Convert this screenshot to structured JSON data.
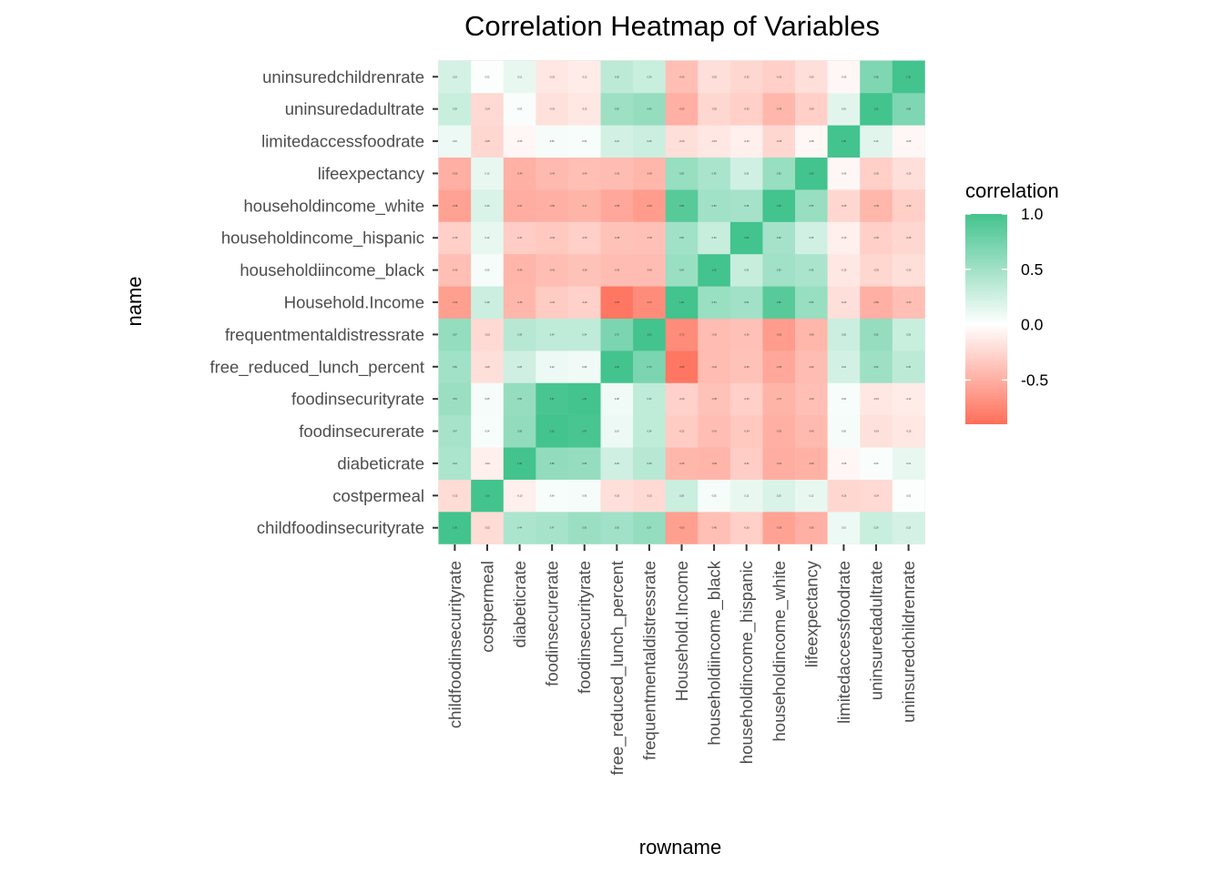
{
  "chart_data": {
    "type": "heatmap",
    "title": "Correlation Heatmap of Variables",
    "xlabel": "rowname",
    "ylabel": "name",
    "x_categories": [
      "childfoodinsecurityrate",
      "costpermeal",
      "diabeticrate",
      "foodinsecurerate",
      "foodinsecurityrate",
      "free_reduced_lunch_percent",
      "frequentmentaldistressrate",
      "Household.Income",
      "householdiincome_black",
      "householdincome_hispanic",
      "householdincome_white",
      "lifeexpectancy",
      "limitedaccessfoodrate",
      "uninsuredadultrate",
      "uninsuredchildrenrate"
    ],
    "y_categories": [
      "childfoodinsecurityrate",
      "costpermeal",
      "diabeticrate",
      "foodinsecurerate",
      "foodinsecurityrate",
      "free_reduced_lunch_percent",
      "frequentmentaldistressrate",
      "Household.Income",
      "householdiincome_black",
      "householdincome_hispanic",
      "householdincome_white",
      "lifeexpectancy",
      "limitedaccessfoodrate",
      "uninsuredadultrate",
      "uninsuredchildrenrate"
    ],
    "values": [
      [
        1.0,
        -0.22,
        0.44,
        0.47,
        0.53,
        0.5,
        0.57,
        -0.6,
        -0.4,
        -0.3,
        -0.58,
        -0.5,
        0.1,
        0.29,
        0.23
      ],
      [
        -0.22,
        1.0,
        -0.1,
        0.04,
        0.05,
        -0.2,
        -0.23,
        0.28,
        0.05,
        0.12,
        0.2,
        0.12,
        -0.25,
        -0.24,
        0.02
      ],
      [
        0.44,
        -0.1,
        1.0,
        0.58,
        0.56,
        0.26,
        0.39,
        -0.45,
        -0.46,
        -0.31,
        -0.51,
        -0.49,
        -0.05,
        0.03,
        0.12
      ],
      [
        0.47,
        0.04,
        0.58,
        1.0,
        0.97,
        0.1,
        0.34,
        -0.32,
        -0.41,
        -0.34,
        -0.5,
        -0.43,
        0.05,
        -0.19,
        -0.15
      ],
      [
        0.53,
        0.05,
        0.56,
        0.97,
        1.0,
        0.08,
        0.34,
        -0.29,
        -0.38,
        -0.3,
        -0.47,
        -0.4,
        0.04,
        -0.15,
        -0.12
      ],
      [
        0.5,
        -0.2,
        0.26,
        0.1,
        0.08,
        1.0,
        0.7,
        -0.85,
        -0.42,
        -0.38,
        -0.55,
        -0.42,
        0.24,
        0.52,
        0.35
      ],
      [
        0.57,
        -0.23,
        0.39,
        0.34,
        0.34,
        0.7,
        1.0,
        -0.72,
        -0.42,
        -0.39,
        -0.62,
        -0.45,
        0.28,
        0.56,
        0.29
      ],
      [
        -0.6,
        0.28,
        -0.45,
        -0.32,
        -0.29,
        -0.85,
        -0.72,
        1.0,
        0.54,
        0.5,
        0.89,
        0.55,
        -0.2,
        -0.5,
        -0.4
      ],
      [
        -0.4,
        0.05,
        -0.46,
        -0.41,
        -0.38,
        -0.42,
        -0.42,
        0.54,
        1.0,
        0.3,
        0.5,
        0.45,
        -0.15,
        -0.25,
        -0.2
      ],
      [
        -0.3,
        0.12,
        -0.31,
        -0.34,
        -0.3,
        -0.38,
        -0.39,
        0.5,
        0.3,
        1.0,
        0.48,
        0.25,
        -0.1,
        -0.3,
        -0.25
      ],
      [
        -0.58,
        0.2,
        -0.51,
        -0.5,
        -0.47,
        -0.55,
        -0.62,
        0.89,
        0.5,
        0.48,
        1.0,
        0.55,
        -0.25,
        -0.45,
        -0.3
      ],
      [
        -0.5,
        0.12,
        -0.49,
        -0.43,
        -0.4,
        -0.42,
        -0.45,
        0.55,
        0.45,
        0.25,
        0.55,
        1.0,
        -0.05,
        -0.3,
        -0.2
      ],
      [
        0.1,
        -0.25,
        -0.05,
        0.05,
        0.04,
        0.24,
        0.28,
        -0.2,
        -0.15,
        -0.1,
        -0.25,
        -0.05,
        1.0,
        0.16,
        -0.05
      ],
      [
        0.29,
        -0.24,
        0.03,
        -0.19,
        -0.15,
        0.52,
        0.56,
        -0.5,
        -0.25,
        -0.3,
        -0.45,
        -0.3,
        0.16,
        1.0,
        0.68
      ],
      [
        0.23,
        0.02,
        0.12,
        -0.15,
        -0.12,
        0.35,
        0.29,
        -0.4,
        -0.2,
        -0.25,
        -0.3,
        -0.2,
        -0.05,
        0.68,
        1.0
      ]
    ],
    "color_scale": {
      "low": "#ff6f59",
      "mid": "#ffffff",
      "high": "#43c38e",
      "limits": [
        -0.9,
        1.0
      ]
    },
    "legend": {
      "title": "correlation",
      "breaks": [
        "1.0",
        "0.5",
        "0.0",
        "-0.5"
      ],
      "break_values": [
        1.0,
        0.5,
        0.0,
        -0.5
      ],
      "placement": "right"
    },
    "panel_background": "#ebebeb",
    "grid": true
  }
}
